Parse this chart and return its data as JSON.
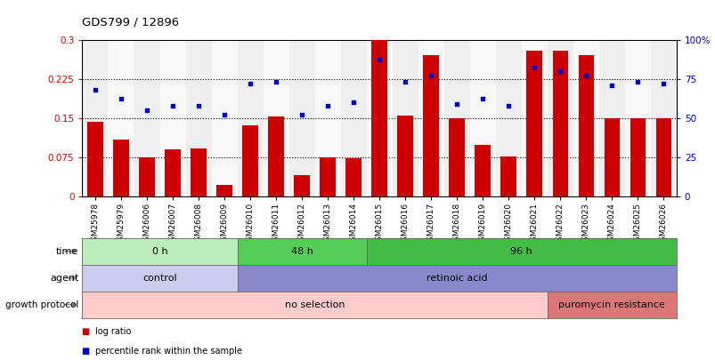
{
  "title": "GDS799 / 12896",
  "samples": [
    "GSM25978",
    "GSM25979",
    "GSM26006",
    "GSM26007",
    "GSM26008",
    "GSM26009",
    "GSM26010",
    "GSM26011",
    "GSM26012",
    "GSM26013",
    "GSM26014",
    "GSM26015",
    "GSM26016",
    "GSM26017",
    "GSM26018",
    "GSM26019",
    "GSM26020",
    "GSM26021",
    "GSM26022",
    "GSM26023",
    "GSM26024",
    "GSM26025",
    "GSM26026"
  ],
  "log_ratio": [
    0.142,
    0.108,
    0.075,
    0.09,
    0.092,
    0.022,
    0.135,
    0.152,
    0.04,
    0.075,
    0.073,
    0.3,
    0.155,
    0.27,
    0.15,
    0.098,
    0.076,
    0.278,
    0.278,
    0.27,
    0.15,
    0.15,
    0.15
  ],
  "percentile_rank": [
    68,
    62,
    55,
    58,
    58,
    52,
    72,
    73,
    52,
    58,
    60,
    87,
    73,
    77,
    59,
    62,
    58,
    82,
    80,
    77,
    71,
    73,
    72
  ],
  "bar_color": "#cc0000",
  "dot_color": "#0000cc",
  "ylim_left": [
    0,
    0.3
  ],
  "ylim_right": [
    0,
    100
  ],
  "yticks_left": [
    0,
    0.075,
    0.15,
    0.225,
    0.3
  ],
  "ytick_labels_left": [
    "0",
    "0.075",
    "0.15",
    "0.225",
    "0.3"
  ],
  "yticks_right": [
    0,
    25,
    50,
    75,
    100
  ],
  "ytick_labels_right": [
    "0",
    "25",
    "50",
    "75",
    "100%"
  ],
  "hlines": [
    0.075,
    0.15,
    0.225
  ],
  "time_groups": [
    {
      "label": "0 h",
      "start": 0,
      "end": 6,
      "color": "#bbeebb"
    },
    {
      "label": "48 h",
      "start": 6,
      "end": 11,
      "color": "#55cc55"
    },
    {
      "label": "96 h",
      "start": 11,
      "end": 23,
      "color": "#44bb44"
    }
  ],
  "agent_groups": [
    {
      "label": "control",
      "start": 0,
      "end": 6,
      "color": "#ccccee"
    },
    {
      "label": "retinoic acid",
      "start": 6,
      "end": 23,
      "color": "#8888cc"
    }
  ],
  "growth_groups": [
    {
      "label": "no selection",
      "start": 0,
      "end": 18,
      "color": "#ffcccc"
    },
    {
      "label": "puromycin resistance",
      "start": 18,
      "end": 23,
      "color": "#dd7777"
    }
  ],
  "row_labels": [
    "time",
    "agent",
    "growth protocol"
  ],
  "legend_items": [
    {
      "color": "#cc0000",
      "label": "log ratio"
    },
    {
      "color": "#0000cc",
      "label": "percentile rank within the sample"
    }
  ],
  "background_color": "#ffffff",
  "bar_width": 0.6,
  "n_samples": 23
}
